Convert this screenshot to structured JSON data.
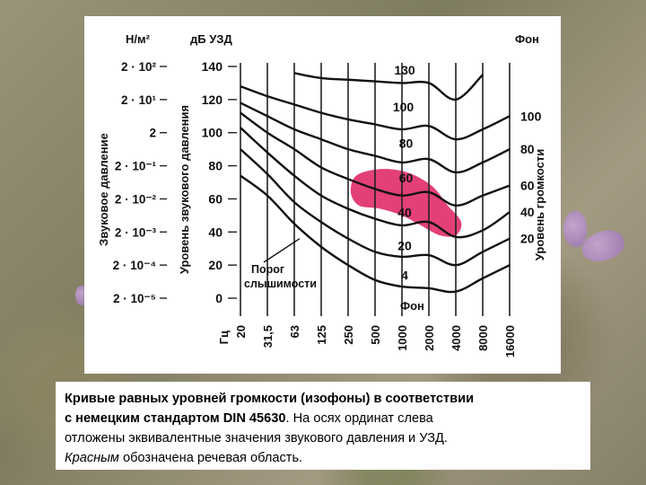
{
  "chart_data": {
    "type": "line",
    "x_unit": "Гц",
    "x_ticks": [
      "20",
      "31,5",
      "63",
      "125",
      "250",
      "500",
      "1000",
      "2000",
      "4000",
      "8000",
      "16000"
    ],
    "y_left_unit": "дБ УЗД",
    "y_left_ticks": [
      0,
      20,
      40,
      60,
      80,
      100,
      120,
      140
    ],
    "y_left_label": "Уровень звукового давления",
    "y_pressure_unit": "Н/м²",
    "y_pressure_ticks": [
      "2 · 10⁻⁵",
      "2 · 10⁻⁴",
      "2 · 10⁻³",
      "2 · 10⁻²",
      "2 · 10⁻¹",
      "2",
      "2 · 10¹",
      "2 · 10²"
    ],
    "y_pressure_label": "Звуковое давление",
    "y_right_unit": "Фон",
    "y_right_ticks": [
      "20",
      "40",
      "60",
      "80",
      "100"
    ],
    "y_right_label": "Уровень громкости",
    "ylim": [
      0,
      140
    ],
    "series": [
      {
        "name": "Порог слышимости",
        "values": [
          74,
          62,
          45,
          31,
          20,
          11,
          7,
          6,
          4,
          12,
          20
        ]
      },
      {
        "name": "20",
        "values": [
          90,
          75,
          58,
          46,
          36,
          28,
          25,
          26,
          20,
          28,
          36
        ]
      },
      {
        "name": "40",
        "values": [
          103,
          88,
          74,
          62,
          54,
          48,
          44,
          46,
          37,
          41,
          52
        ]
      },
      {
        "name": "60",
        "values": [
          112,
          100,
          90,
          79,
          72,
          66,
          62,
          64,
          56,
          62,
          68
        ]
      },
      {
        "name": "80",
        "values": [
          118,
          110,
          102,
          96,
          90,
          86,
          82,
          84,
          76,
          82,
          90
        ]
      },
      {
        "name": "100",
        "values": [
          128,
          122,
          117,
          112,
          108,
          105,
          102,
          104,
          96,
          102,
          110
        ]
      },
      {
        "name": "130",
        "values": [
          null,
          null,
          136,
          133,
          132,
          131,
          130,
          130,
          120,
          135,
          null
        ]
      }
    ],
    "curve_labels": [
      "130",
      "100",
      "80",
      "60",
      "40",
      "20",
      "4",
      "Порог слышимости"
    ],
    "x_axis_phon_label": "Фон",
    "speech_region_color": "#e0306a"
  },
  "caption": {
    "line1": "Кривые равных уровней громкости (изофоны) в соответствии",
    "line2_bold": "с немецким стандартом DIN 45630",
    "line2_rest": ". На осях ординат слева",
    "line3": "отложены эквивалентные значения звукового давления и УЗД.",
    "line4_italic": "Красным",
    "line4_rest": " обозначена речевая область."
  }
}
